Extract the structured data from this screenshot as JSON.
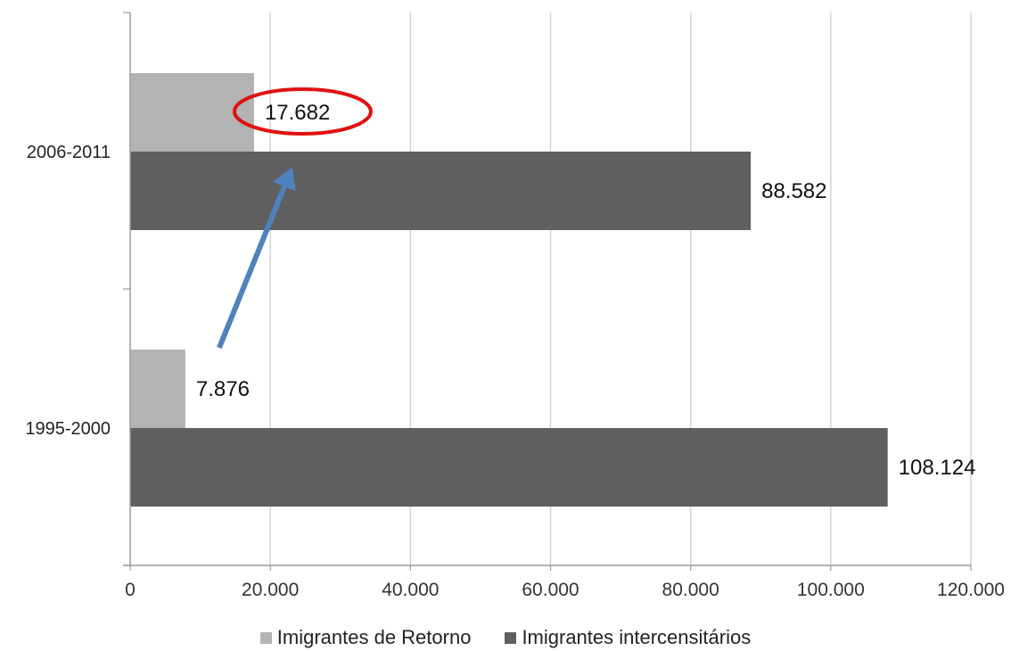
{
  "chart_data": {
    "type": "bar",
    "orientation": "horizontal",
    "categories": [
      "2006-2011",
      "1995-2000"
    ],
    "series": [
      {
        "name": "Imigrantes de Retorno",
        "color": "#b3b3b3",
        "values": [
          17682,
          7876
        ],
        "labels": [
          "17.682",
          "7.876"
        ]
      },
      {
        "name": "Imigrantes intercensitários",
        "color": "#5f5f5f",
        "values": [
          88582,
          108124
        ],
        "labels": [
          "88.582",
          "108.124"
        ]
      }
    ],
    "xlim": [
      0,
      120000
    ],
    "xticks": [
      0,
      20000,
      40000,
      60000,
      80000,
      100000,
      120000
    ],
    "xtick_labels": [
      "0",
      "20.000",
      "40.000",
      "60.000",
      "80.000",
      "100.000",
      "120.000"
    ],
    "grid": "vertical",
    "legend_position": "bottom",
    "title": "",
    "xlabel": "",
    "ylabel": "",
    "annotations": [
      {
        "type": "ellipse",
        "target": "17.682",
        "color": "#e01010"
      },
      {
        "type": "arrow",
        "from": "7.876",
        "to": "17.682",
        "color": "#4f81bd"
      }
    ]
  }
}
